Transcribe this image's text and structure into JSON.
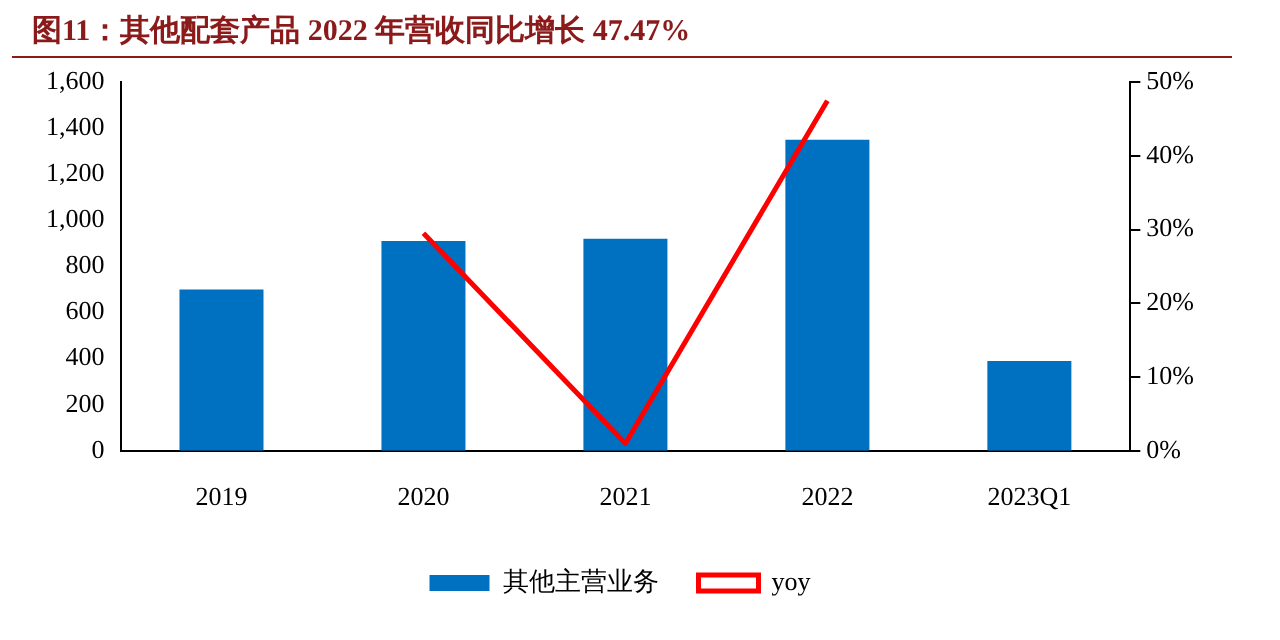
{
  "chart_data": {
    "type": "bar",
    "title": "图11：其他配套产品 2022 年营收同比增长 47.47%",
    "categories": [
      "2019",
      "2020",
      "2021",
      "2022",
      "2023Q1"
    ],
    "series": [
      {
        "name": "其他主营业务",
        "color": "#0070c0",
        "values": [
          700,
          910,
          920,
          1350,
          390
        ]
      },
      {
        "name": "yoy",
        "type": "line",
        "color": "#ff0000",
        "axis": "y2",
        "values": [
          null,
          29.5,
          1,
          47.47,
          null
        ]
      }
    ],
    "ylim": [
      0,
      1600
    ],
    "yticks": [
      0,
      {
        "value": 200,
        "label": "200"
      },
      {
        "value": 400,
        "label": "400"
      },
      {
        "value": 600,
        "label": "600"
      },
      {
        "value": 800,
        "label": "800"
      },
      {
        "value": 1000,
        "label": "1,000"
      },
      {
        "value": 1200,
        "label": "1,200"
      },
      {
        "value": 1400,
        "label": "1,400"
      },
      {
        "value": 1600,
        "label": "1,600"
      }
    ],
    "y2lim": [
      0,
      50
    ],
    "y2ticks": [
      {
        "value": 0,
        "label": "0%"
      },
      {
        "value": 10,
        "label": "10%"
      },
      {
        "value": 20,
        "label": "20%"
      },
      {
        "value": 30,
        "label": "30%"
      },
      {
        "value": 40,
        "label": "40%"
      },
      {
        "value": 50,
        "label": "50%"
      }
    ],
    "grid": false,
    "legend": "bottom",
    "marker": "none"
  }
}
